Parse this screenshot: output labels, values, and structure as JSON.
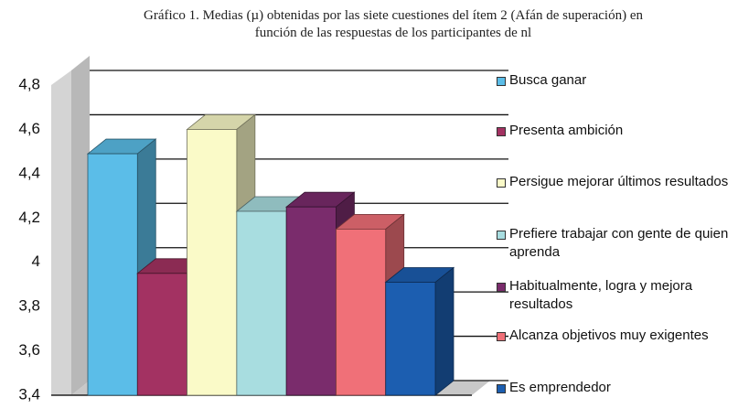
{
  "chart_data": {
    "type": "bar3d",
    "title": "Gráfico 1. Medias (µ) obtenidas por las siete cuestiones del ítem 2 (Afán de superación) en función de las respuestas de los participantes de nl",
    "series": [
      {
        "name": "Busca ganar",
        "color": "#5bbde8",
        "values": [
          4.49
        ]
      },
      {
        "name": "Presenta ambición",
        "color": "#a33262",
        "values": [
          3.95
        ]
      },
      {
        "name": "Persigue mejorar últimos resultados",
        "color": "#fafac8",
        "values": [
          4.6
        ]
      },
      {
        "name": "Prefiere trabajar con gente de quien aprenda",
        "color": "#a8dde0",
        "values": [
          4.23
        ]
      },
      {
        "name": "Habitualmente, logra y mejora resultados",
        "color": "#7a2c6c",
        "values": [
          4.25
        ]
      },
      {
        "name": "Alcanza objetivos muy exigentes",
        "color": "#f07078",
        "values": [
          4.15
        ]
      },
      {
        "name": "Es emprendedor",
        "color": "#1c5eb0",
        "values": [
          3.91
        ]
      }
    ],
    "ylim": [
      3.4,
      4.8
    ],
    "yticks": [
      {
        "value": 3.4,
        "label": "3,4"
      },
      {
        "value": 3.6,
        "label": "3,6"
      },
      {
        "value": 3.8,
        "label": "3,8"
      },
      4,
      {
        "value": 4.2,
        "label": "4,2"
      },
      {
        "value": 4.4,
        "label": "4,4"
      },
      {
        "value": 4.6,
        "label": "4,6"
      },
      {
        "value": 4.8,
        "label": "4,8"
      }
    ],
    "grid": true,
    "legend": "right"
  }
}
